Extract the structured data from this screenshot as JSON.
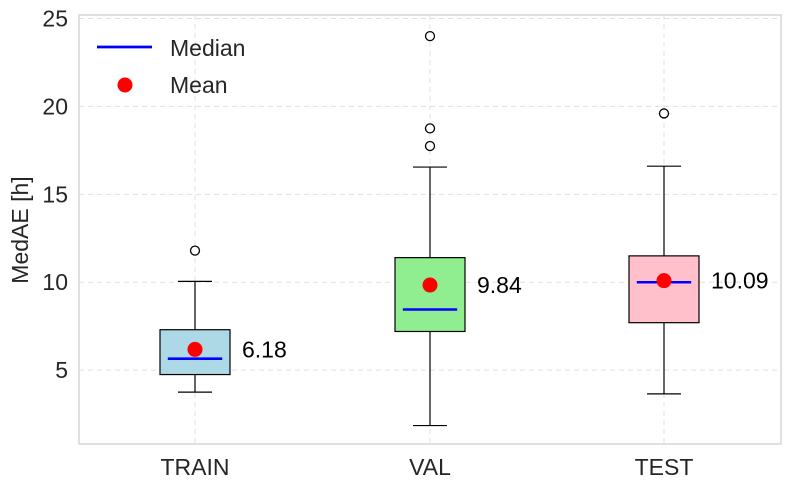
{
  "chart_data": {
    "type": "box",
    "ylabel": "MedAE [h]",
    "xlabel": "",
    "ylim": [
      0.8,
      25.2
    ],
    "yticks": [
      5,
      10,
      15,
      20,
      25
    ],
    "categories": [
      "TRAIN",
      "VAL",
      "TEST"
    ],
    "boxes": [
      {
        "name": "TRAIN",
        "color": "#add8e6",
        "whisker_low": 3.75,
        "q1": 4.75,
        "median": 5.65,
        "q3": 7.3,
        "whisker_high": 10.05,
        "mean": 6.18,
        "mean_label": "6.18",
        "outliers": [
          11.8
        ]
      },
      {
        "name": "VAL",
        "color": "#90ee90",
        "whisker_low": 1.85,
        "q1": 7.2,
        "median": 8.45,
        "q3": 11.4,
        "whisker_high": 16.55,
        "mean": 9.84,
        "mean_label": "9.84",
        "outliers": [
          17.75,
          18.75,
          24.0
        ]
      },
      {
        "name": "TEST",
        "color": "#ffc0cb",
        "whisker_low": 3.65,
        "q1": 7.7,
        "median": 10.0,
        "q3": 11.5,
        "whisker_high": 16.6,
        "mean": 10.09,
        "mean_label": "10.09",
        "outliers": [
          19.6
        ]
      }
    ],
    "legend": {
      "position": "top-left",
      "entries": [
        {
          "label": "Median",
          "marker": "line",
          "color": "#0000ff"
        },
        {
          "label": "Mean",
          "marker": "dot",
          "color": "#ff0000"
        }
      ]
    },
    "grid": true,
    "median_color": "#0000ff",
    "mean_color": "#ff0000"
  }
}
